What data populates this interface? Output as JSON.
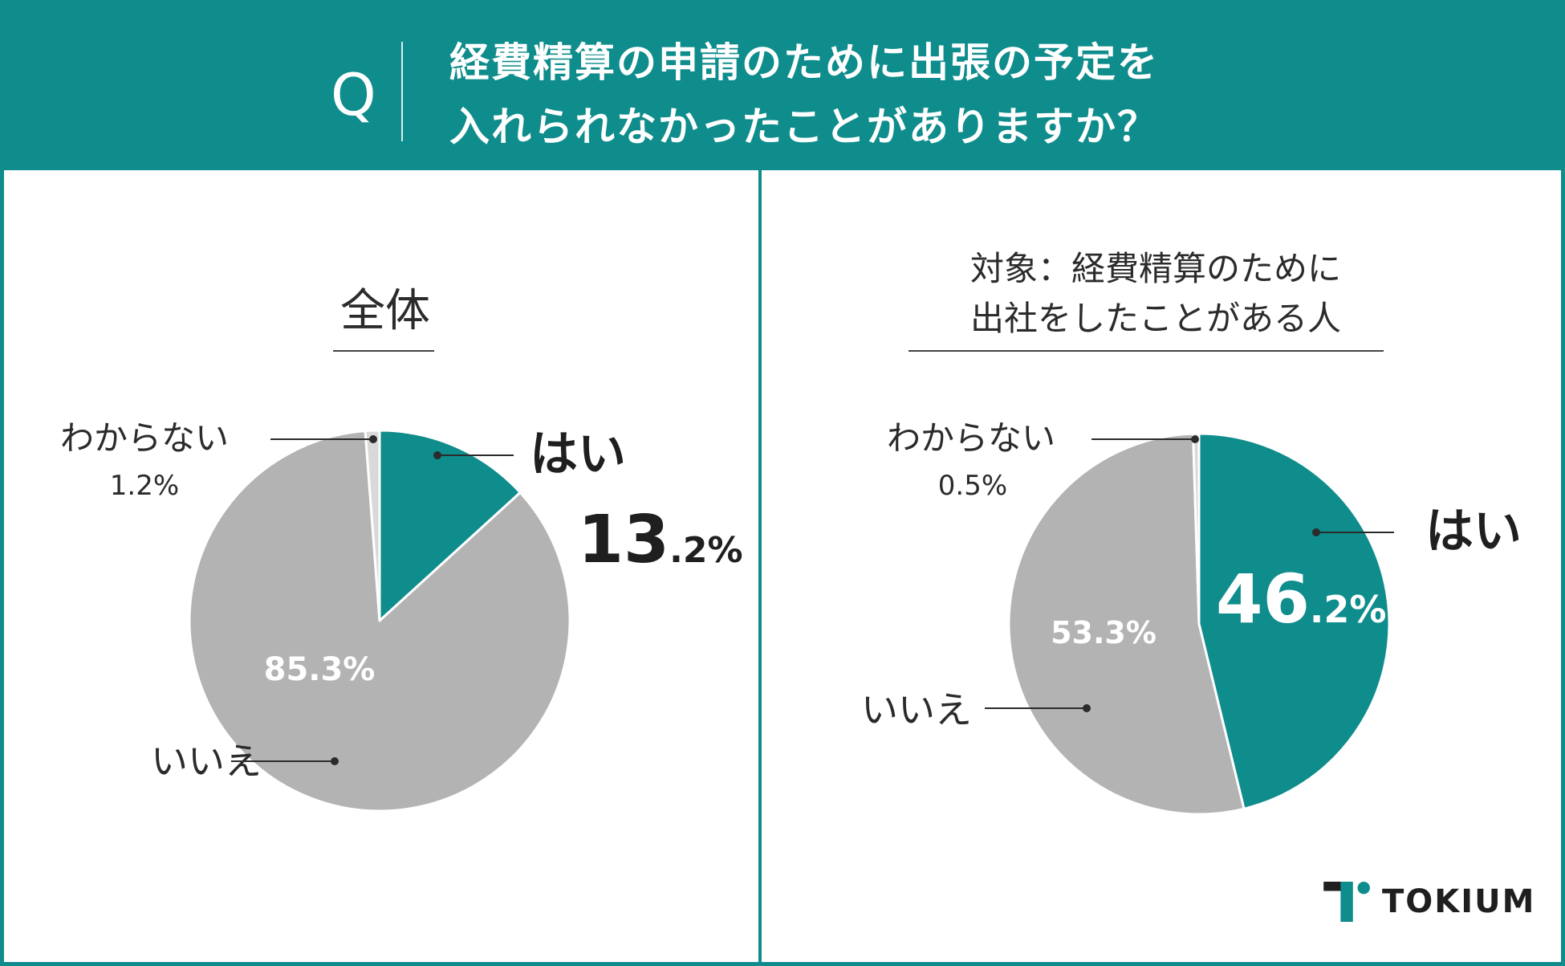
{
  "question": {
    "mark": "Q",
    "line1": "経費精算の申請のために出張の予定を",
    "line2": "入れられなかったことがありますか？"
  },
  "colors": {
    "teal": "#0f8c8c",
    "gray": "#b3b3b3",
    "light_gray": "#d9d9d9"
  },
  "brand": {
    "name": "TOKIUM",
    "icon": "tokium-logo-icon"
  },
  "chart_data": [
    {
      "type": "pie",
      "title": "全体",
      "slices": [
        {
          "label": "はい",
          "value": 13.2,
          "display": "13.2%",
          "color": "#0f8c8c"
        },
        {
          "label": "いいえ",
          "value": 85.3,
          "display": "85.3%",
          "color": "#b3b3b3"
        },
        {
          "label": "わからない",
          "value": 1.2,
          "display": "1.2%",
          "color": "#d9d9d9"
        }
      ]
    },
    {
      "type": "pie",
      "title_line1": "対象：経費精算のために",
      "title_line2": "出社をしたことがある人",
      "slices": [
        {
          "label": "はい",
          "value": 46.2,
          "display": "46.2%",
          "color": "#0f8c8c"
        },
        {
          "label": "いいえ",
          "value": 53.3,
          "display": "53.3%",
          "color": "#b3b3b3"
        },
        {
          "label": "わからない",
          "value": 0.5,
          "display": "0.5%",
          "color": "#d9d9d9"
        }
      ]
    }
  ]
}
